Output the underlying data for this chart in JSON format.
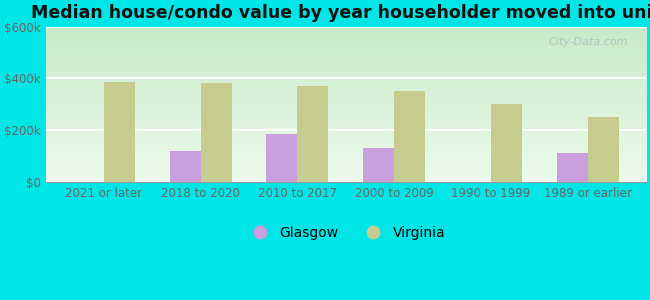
{
  "title": "Median house/condo value by year householder moved into unit",
  "categories": [
    "2021 or later",
    "2018 to 2020",
    "2010 to 2017",
    "2000 to 2009",
    "1990 to 1999",
    "1989 or earlier"
  ],
  "glasgow_values": [
    0,
    120000,
    185000,
    130000,
    0,
    110000
  ],
  "virginia_values": [
    385000,
    380000,
    370000,
    350000,
    300000,
    250000
  ],
  "glasgow_color": "#c9a0dc",
  "virginia_color": "#c5cc8e",
  "outer_bg": "#00e5e5",
  "plot_bg_top": "#d8f0d8",
  "plot_bg_bottom": "#f5fff5",
  "ylim": [
    0,
    600000
  ],
  "yticks": [
    0,
    200000,
    400000,
    600000
  ],
  "ytick_labels": [
    "$0",
    "$200k",
    "$400k",
    "$600k"
  ],
  "legend_glasgow": "Glasgow",
  "legend_virginia": "Virginia",
  "bar_width": 0.32,
  "title_fontsize": 12.5,
  "tick_fontsize": 8.5,
  "legend_fontsize": 10,
  "watermark": "City-Data.com"
}
